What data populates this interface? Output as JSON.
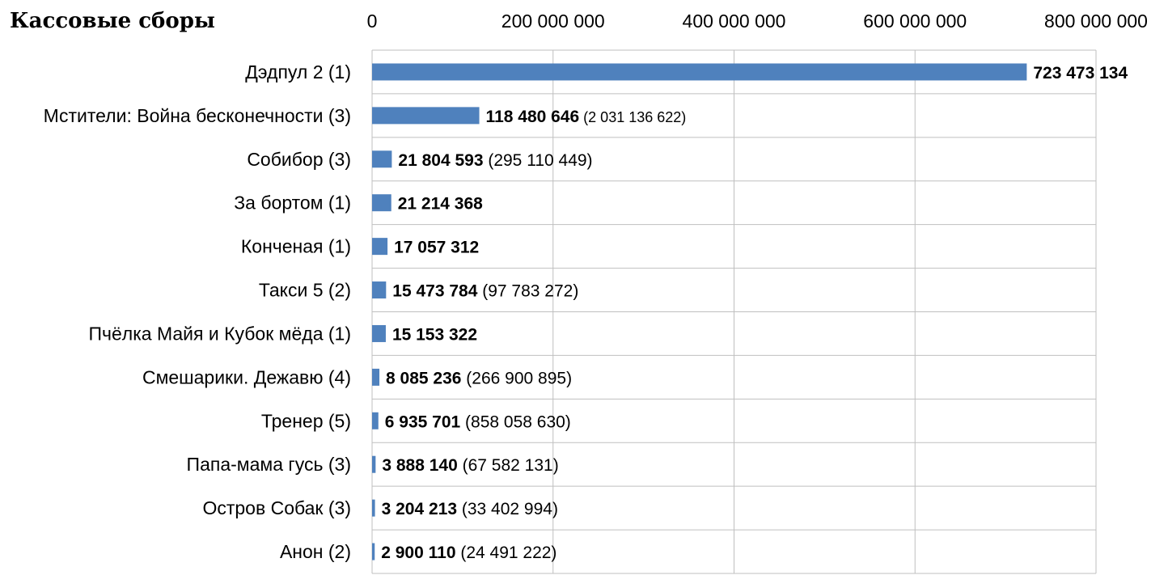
{
  "chart_data": {
    "type": "bar",
    "orientation": "horizontal",
    "title": "Кассовые сборы",
    "xlim": [
      0,
      800000000
    ],
    "x_ticks": [
      "0",
      "200 000 000",
      "400 000 000",
      "600 000 000",
      "800 000 000"
    ],
    "x_tick_values": [
      0,
      200000000,
      400000000,
      600000000,
      800000000
    ],
    "grid": true,
    "bar_color": "#4f81bd",
    "rows": [
      {
        "category": "Дэдпул 2 (1)",
        "value": 723473134,
        "value_label": "723 473 134",
        "total_label": ""
      },
      {
        "category": "Мстители: Война бесконечности (3)",
        "value": 118480646,
        "value_label": "118 480 646",
        "total_label": "(2 031 136 622)"
      },
      {
        "category": "Собибор (3)",
        "value": 21804593,
        "value_label": "21 804 593",
        "total_label": "(295 110 449)"
      },
      {
        "category": "За бортом (1)",
        "value": 21214368,
        "value_label": "21 214 368",
        "total_label": ""
      },
      {
        "category": "Конченая (1)",
        "value": 17057312,
        "value_label": "17 057 312",
        "total_label": ""
      },
      {
        "category": "Такси 5 (2)",
        "value": 15473784,
        "value_label": "15 473 784",
        "total_label": "(97 783 272)"
      },
      {
        "category": "Пчёлка Майя и Кубок мёда (1)",
        "value": 15153322,
        "value_label": "15 153 322",
        "total_label": ""
      },
      {
        "category": "Смешарики. Дежавю (4)",
        "value": 8085236,
        "value_label": "8 085 236",
        "total_label": "(266 900 895)"
      },
      {
        "category": "Тренер (5)",
        "value": 6935701,
        "value_label": "6 935 701",
        "total_label": "(858 058 630)"
      },
      {
        "category": "Папа-мама гусь (3)",
        "value": 3888140,
        "value_label": "3 888 140",
        "total_label": "(67 582 131)"
      },
      {
        "category": "Остров Собак (3)",
        "value": 3204213,
        "value_label": "3 204 213",
        "total_label": "(33 402 994)"
      },
      {
        "category": "Анон (2)",
        "value": 2900110,
        "value_label": "2 900 110",
        "total_label": "(24 491 222)"
      }
    ]
  }
}
